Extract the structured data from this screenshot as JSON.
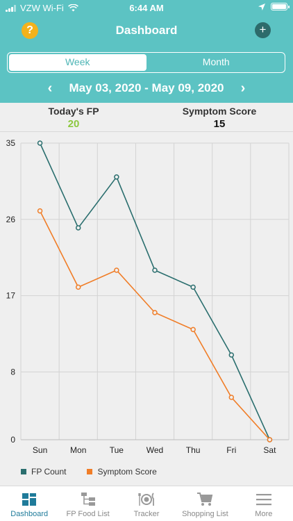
{
  "status": {
    "carrier": "VZW Wi-Fi",
    "time": "6:44 AM"
  },
  "header": {
    "help_label": "?",
    "title": "Dashboard",
    "add_label": "+"
  },
  "segment": {
    "week": "Week",
    "month": "Month",
    "selected": "Week"
  },
  "date_range": {
    "label": "May 03, 2020 - May 09, 2020",
    "prev": "‹",
    "next": "›"
  },
  "summary": {
    "fp_label": "Today's FP",
    "fp_value": "20",
    "symptom_label": "Symptom Score",
    "symptom_value": "15"
  },
  "chart_data": {
    "type": "line",
    "categories": [
      "Sun",
      "Mon",
      "Tue",
      "Wed",
      "Thu",
      "Fri",
      "Sat"
    ],
    "y_ticks": [
      "35",
      "26",
      "17",
      "8",
      "0"
    ],
    "ylim": [
      0,
      35
    ],
    "grid": true,
    "legend_position": "bottom-left",
    "series": [
      {
        "name": "FP Count",
        "color": "#2a6e6e",
        "values": [
          35,
          25,
          31,
          20,
          18,
          10,
          0
        ]
      },
      {
        "name": "Symptom Score",
        "color": "#f07d27",
        "values": [
          27,
          18,
          20,
          15,
          13,
          5,
          0
        ]
      }
    ]
  },
  "tabbar": {
    "items": [
      {
        "label": "Dashboard",
        "icon": "dashboard-icon",
        "active": true
      },
      {
        "label": "FP Food List",
        "icon": "food-list-icon",
        "active": false
      },
      {
        "label": "Tracker",
        "icon": "tracker-icon",
        "active": false
      },
      {
        "label": "Shopping List",
        "icon": "cart-icon",
        "active": false
      },
      {
        "label": "More",
        "icon": "menu-icon",
        "active": false
      }
    ]
  }
}
